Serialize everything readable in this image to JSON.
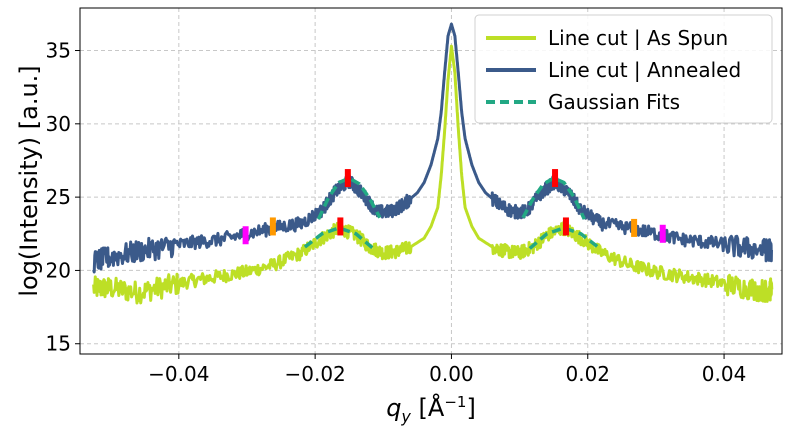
{
  "chart_data": {
    "type": "line",
    "title": "",
    "xlabel_var": "q",
    "xlabel_sub": "y",
    "xlabel_unit_prefix": " [Å",
    "xlabel_unit_sup": "−1",
    "xlabel_unit_suffix": "]",
    "ylabel": "log(Intensity) [a.u.]",
    "xlim": [
      -0.0545,
      0.0485
    ],
    "ylim": [
      14.3,
      37.9
    ],
    "xticks": [
      -0.04,
      -0.02,
      0.0,
      0.02,
      0.04
    ],
    "xtick_labels": [
      "−0.04",
      "−0.02",
      "0.00",
      "0.02",
      "0.04"
    ],
    "yticks": [
      15,
      20,
      25,
      30,
      35
    ],
    "ytick_labels": [
      "15",
      "20",
      "25",
      "30",
      "35"
    ],
    "grid": true,
    "legend_position": "upper-right",
    "series": [
      {
        "name": "Line cut | As Spun",
        "color": "#bddf26",
        "style": "solid",
        "x": [
          -0.0525,
          -0.05,
          -0.046,
          -0.042,
          -0.038,
          -0.034,
          -0.03,
          -0.026,
          -0.022,
          -0.019,
          -0.0165,
          -0.014,
          -0.012,
          -0.01,
          -0.008,
          -0.006,
          -0.004,
          -0.003,
          -0.002,
          -0.0015,
          -0.001,
          -0.0005,
          0.0,
          0.0005,
          0.001,
          0.0015,
          0.002,
          0.003,
          0.004,
          0.006,
          0.008,
          0.01,
          0.012,
          0.014,
          0.0165,
          0.019,
          0.022,
          0.026,
          0.03,
          0.034,
          0.038,
          0.042,
          0.046,
          0.047
        ],
        "y": [
          18.8,
          18.8,
          18.5,
          18.9,
          19.3,
          19.6,
          19.9,
          20.4,
          21.2,
          22.2,
          22.9,
          22.4,
          21.6,
          21.2,
          21.3,
          21.6,
          22.2,
          23.0,
          24.3,
          26.5,
          29.5,
          33.0,
          35.3,
          33.5,
          29.7,
          26.5,
          24.3,
          23.0,
          22.2,
          21.6,
          21.3,
          21.2,
          21.6,
          22.4,
          22.9,
          22.2,
          21.2,
          20.4,
          19.9,
          19.6,
          19.3,
          18.9,
          18.6,
          18.7
        ]
      },
      {
        "name": "Line cut | Annealed",
        "color": "#3b5a8a",
        "style": "solid",
        "x": [
          -0.0525,
          -0.05,
          -0.046,
          -0.042,
          -0.038,
          -0.034,
          -0.03,
          -0.026,
          -0.022,
          -0.019,
          -0.017,
          -0.015,
          -0.013,
          -0.011,
          -0.009,
          -0.007,
          -0.005,
          -0.004,
          -0.003,
          -0.002,
          -0.0015,
          -0.001,
          -0.0005,
          0.0,
          0.0005,
          0.001,
          0.0015,
          0.002,
          0.003,
          0.004,
          0.005,
          0.007,
          0.009,
          0.011,
          0.013,
          0.015,
          0.017,
          0.019,
          0.022,
          0.026,
          0.03,
          0.034,
          0.038,
          0.042,
          0.046,
          0.047
        ],
        "y": [
          20.6,
          20.9,
          21.3,
          21.6,
          21.9,
          22.1,
          22.5,
          22.9,
          23.2,
          24.1,
          25.4,
          26.1,
          25.2,
          24.0,
          24.0,
          24.5,
          25.3,
          26.0,
          27.2,
          29.0,
          30.8,
          33.5,
          36.0,
          36.8,
          36.0,
          33.5,
          30.8,
          29.0,
          27.2,
          26.0,
          25.3,
          24.5,
          24.0,
          24.0,
          25.2,
          26.0,
          25.4,
          24.1,
          23.2,
          22.9,
          22.5,
          22.1,
          21.9,
          21.6,
          21.4,
          21.4
        ]
      },
      {
        "name": "Gaussian Fits",
        "color": "#22a884",
        "style": "dashed",
        "x": [],
        "y": []
      }
    ],
    "gaussian_fits": [
      {
        "x": [
          -0.0195,
          -0.018,
          -0.0165,
          -0.015,
          -0.0135,
          -0.012,
          -0.0105
        ],
        "y": [
          23.5,
          25.0,
          26.0,
          26.3,
          25.9,
          24.9,
          23.6
        ]
      },
      {
        "x": [
          0.0105,
          0.012,
          0.0135,
          0.015,
          0.0165,
          0.018,
          0.0195
        ],
        "y": [
          23.6,
          24.9,
          25.9,
          26.3,
          26.0,
          25.0,
          23.5
        ]
      },
      {
        "x": [
          -0.0215,
          -0.019,
          -0.0165,
          -0.014,
          -0.0115
        ],
        "y": [
          21.6,
          22.5,
          22.9,
          22.5,
          21.5
        ]
      },
      {
        "x": [
          0.0115,
          0.014,
          0.0165,
          0.019,
          0.0215
        ],
        "y": [
          21.5,
          22.5,
          22.9,
          22.5,
          21.6
        ]
      }
    ],
    "peak_markers": [
      {
        "x": -0.0152,
        "y": 26.3,
        "color": "#ff0000"
      },
      {
        "x": 0.0152,
        "y": 26.3,
        "color": "#ff0000"
      },
      {
        "x": -0.0163,
        "y": 23.0,
        "color": "#ff0000"
      },
      {
        "x": 0.0168,
        "y": 23.0,
        "color": "#ff0000"
      },
      {
        "x": -0.0262,
        "y": 23.0,
        "color": "#ff9900"
      },
      {
        "x": 0.0268,
        "y": 22.9,
        "color": "#ff9900"
      },
      {
        "x": -0.0302,
        "y": 22.4,
        "color": "#ff00ff"
      },
      {
        "x": 0.031,
        "y": 22.5,
        "color": "#ff00ff"
      }
    ]
  }
}
